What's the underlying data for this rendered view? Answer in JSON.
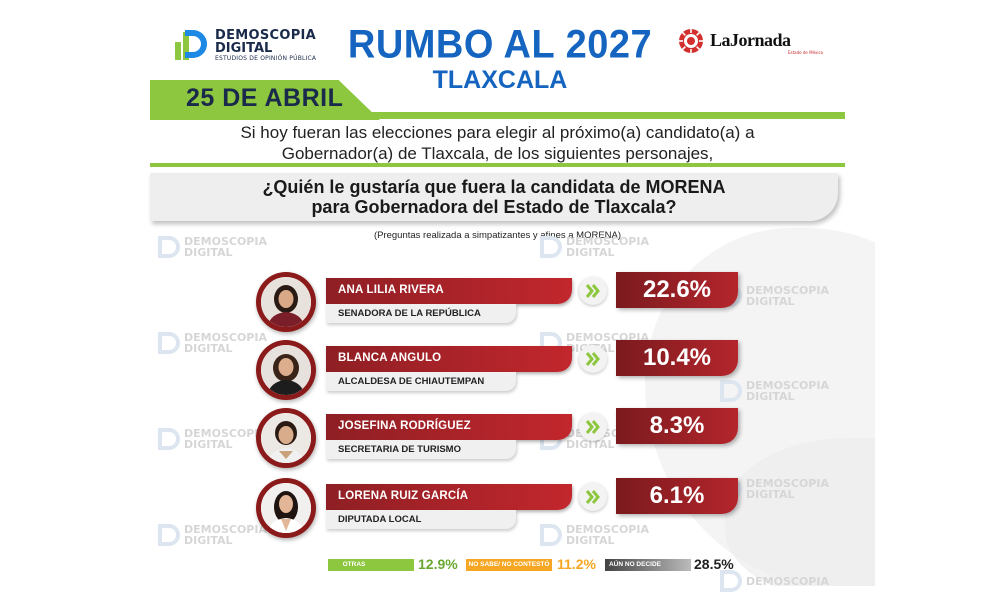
{
  "header": {
    "brand_line1": "DEMOSCOPIA",
    "brand_line2": "DIGITAL",
    "brand_tagline": "ESTUDIOS DE OPINIÓN PÚBLICA",
    "title": "RUMBO AL 2027",
    "subtitle": "TLAXCALA",
    "partner_name": "LaJornada",
    "partner_sub": "Estado de México"
  },
  "date": "25 DE ABRIL",
  "intro": {
    "line1": "Si hoy fueran las elecciones para elegir al próximo(a) candidato(a) a",
    "line2": "Gobernador(a) de Tlaxcala, de los siguientes personajes,"
  },
  "question": {
    "line1": "¿Quién le gustaría que fuera la candidata de MORENA",
    "line2": "para Gobernadora del Estado de Tlaxcala?",
    "note": "(Preguntas realizada a simpatizantes y afines a MORENA)"
  },
  "watermark": {
    "line1": "DEMOSCOPIA",
    "line2": "DIGITAL"
  },
  "colors": {
    "accent_blue": "#1565c0",
    "accent_green": "#8dc63f",
    "bar_red": "#b4262c",
    "otras": "#8dc63f",
    "no_sabe": "#f5a623",
    "aun_no": "#9e9e9e"
  },
  "chart_data": {
    "type": "bar",
    "categories": [
      "ANA LILIA RIVERA",
      "BLANCA ANGULO",
      "JOSEFINA RODRÍGUEZ",
      "LORENA RUIZ GARCÍA"
    ],
    "roles": [
      "SENADORA DE LA REPÚBLICA",
      "ALCALDESA DE CHIAUTEMPAN",
      "SECRETARIA DE TURISMO",
      "DIPUTADA LOCAL"
    ],
    "values": [
      22.6,
      10.4,
      8.3,
      6.1
    ],
    "value_labels": [
      "22.6%",
      "10.4%",
      "8.3%",
      "6.1%"
    ],
    "extra": [
      {
        "label": "OTRAS",
        "value": 12.9,
        "value_label": "12.9%",
        "color": "#8dc63f"
      },
      {
        "label": "NO SABE/ NO CONTESTÓ",
        "value": 11.2,
        "value_label": "11.2%",
        "color": "#f5a623"
      },
      {
        "label": "AÚN NO DECIDE",
        "value": 28.5,
        "value_label": "28.5%",
        "color": "#9e9e9e"
      }
    ]
  }
}
